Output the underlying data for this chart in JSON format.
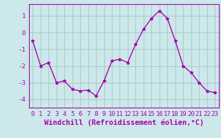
{
  "x": [
    0,
    1,
    2,
    3,
    4,
    5,
    6,
    7,
    8,
    9,
    10,
    11,
    12,
    13,
    14,
    15,
    16,
    17,
    18,
    19,
    20,
    21,
    22,
    23
  ],
  "y": [
    -0.5,
    -2.0,
    -1.8,
    -3.0,
    -2.9,
    -3.4,
    -3.5,
    -3.45,
    -3.8,
    -2.9,
    -1.7,
    -1.6,
    -1.8,
    -0.7,
    0.2,
    0.85,
    1.3,
    0.85,
    -0.5,
    -2.0,
    -2.4,
    -3.0,
    -3.5,
    -3.6
  ],
  "line_color": "#aa00aa",
  "marker": "*",
  "marker_size": 3,
  "bg_color": "#cce8ea",
  "grid_color": "#aacccc",
  "xlabel": "Windchill (Refroidissement éolien,°C)",
  "xlabel_color": "#aa00aa",
  "tick_color": "#aa00aa",
  "ylim": [
    -4.5,
    1.7
  ],
  "xlim": [
    -0.5,
    23.5
  ],
  "yticks": [
    -4,
    -3,
    -2,
    -1,
    0,
    1
  ],
  "xticks": [
    0,
    1,
    2,
    3,
    4,
    5,
    6,
    7,
    8,
    9,
    10,
    11,
    12,
    13,
    14,
    15,
    16,
    17,
    18,
    19,
    20,
    21,
    22,
    23
  ],
  "spine_color": "#aa00aa",
  "tick_label_fontsize": 6.5,
  "xlabel_fontsize": 7.5
}
